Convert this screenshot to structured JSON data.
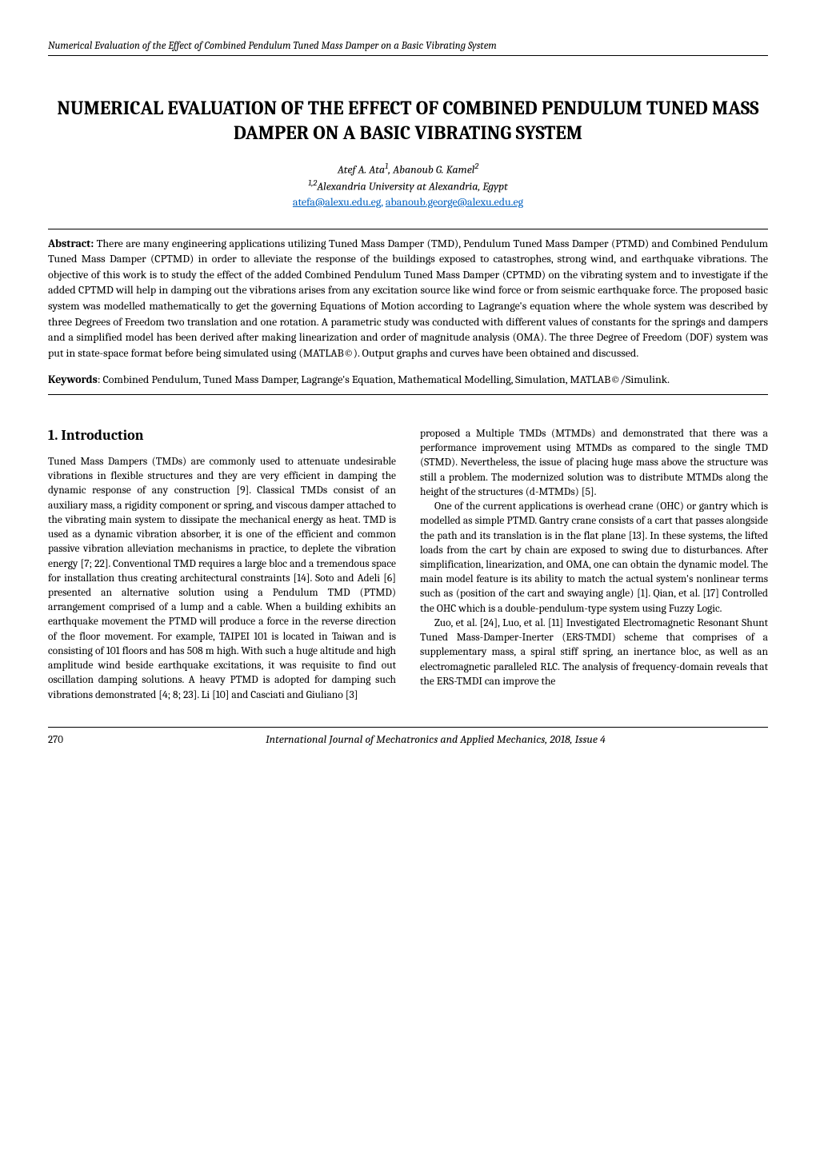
{
  "header": {
    "running_title": "Numerical Evaluation of the Effect of Combined Pendulum Tuned Mass Damper on a Basic Vibrating System"
  },
  "title": "NUMERICAL EVALUATION OF THE EFFECT OF COMBINED PENDULUM TUNED MASS DAMPER ON A BASIC VIBRATING SYSTEM",
  "authors": {
    "line": "Atef A. Ata",
    "sup1": "1",
    "name2": ", Abanoub G. Kamel",
    "sup2": "2"
  },
  "affiliation": {
    "sup": "1,2",
    "text": "Alexandria University at  Alexandria, Egypt"
  },
  "emails": {
    "email1": "atefa@alexu.edu.eg,",
    "email2": "abanoub.george@alexu.edu.eg"
  },
  "abstract": {
    "label": "Abstract:",
    "text": " There are many engineering applications utilizing Tuned Mass Damper (TMD), Pendulum Tuned Mass Damper (PTMD) and Combined Pendulum Tuned Mass Damper (CPTMD) in order to alleviate the response of the buildings exposed to catastrophes, strong wind, and earthquake vibrations. The objective of this work is to study the effect of the added Combined Pendulum Tuned Mass Damper (CPTMD) on the vibrating system and to investigate if the added CPTMD will help in damping out the vibrations arises from any excitation source like wind force or from seismic earthquake force. The proposed basic system was modelled mathematically to get the governing Equations of Motion according to Lagrange's equation where the whole system was described by three Degrees of Freedom two translation and one rotation. A parametric study was conducted with different values of constants for the springs and dampers and a simplified model has been derived after making linearization and order of magnitude analysis (OMA). The three Degree of Freedom (DOF) system was put in state-space format before being simulated using (MATLAB©). Output graphs and curves have been obtained and discussed."
  },
  "keywords": {
    "label": "Keywords",
    "colon": ":",
    "text": "  Combined Pendulum, Tuned Mass Damper, Lagrange's Equation, Mathematical Modelling, Simulation, MATLAB©/Simulink."
  },
  "section1": {
    "heading": "1. Introduction",
    "col1_para1": "Tuned Mass Dampers (TMDs) are commonly used to attenuate undesirable vibrations in flexible structures and they are very efficient in damping the dynamic response of any construction [9]. Classical TMDs consist of an auxiliary mass, a rigidity component or spring, and viscous damper attached to the vibrating main system to dissipate the mechanical energy as heat. TMD is used as a dynamic vibration absorber, it is one of the efficient and common passive vibration alleviation mechanisms in practice, to deplete the vibration energy [7; 22]. Conventional TMD requires a large bloc and a tremendous space for installation thus creating architectural constraints [14]. Soto and Adeli [6] presented an alternative solution using a Pendulum TMD (PTMD) arrangement comprised of a lump and a cable. When a building exhibits an earthquake movement the PTMD will produce a force in the reverse direction of the floor movement. For example, TAIPEI 101 is located in Taiwan and is consisting of 101 floors and has 508 m high. With such a huge altitude and high amplitude wind beside earthquake excitations, it was requisite to find out oscillation damping solutions. A heavy PTMD is adopted for damping such vibrations demonstrated [4; 8; 23]. Li [10] and Casciati and Giuliano [3]",
    "col2_para1": "proposed a Multiple TMDs (MTMDs) and demonstrated that there was a performance improvement using MTMDs as compared to the single TMD (STMD). Nevertheless, the issue of placing huge mass above the structure was still a problem. The modernized solution was to distribute MTMDs along the height of the structures (d-MTMDs) [5].",
    "col2_para2": "One of the current applications is overhead crane (OHC) or gantry which is modelled as simple PTMD. Gantry crane consists of a cart that passes alongside the path and its translation is in the flat plane [13]. In these systems, the lifted loads from the cart by chain are exposed to swing due to disturbances. After simplification, linearization, and OMA, one can obtain the dynamic model. The main model feature is its ability to match the actual system's nonlinear terms such as (position of the cart and swaying angle) [1]. Qian, et al. [17] Controlled the OHC which is a double-pendulum-type system using Fuzzy Logic.",
    "col2_para3": "Zuo, et al. [24], Luo, et al. [11] Investigated Electromagnetic Resonant Shunt Tuned Mass-Damper-Inerter (ERS-TMDI) scheme that comprises of a supplementary mass, a spiral stiff spring, an inertance bloc, as well as an electromagnetic paralleled RLC. The analysis of frequency-domain reveals that the ERS-TMDI can improve the"
  },
  "footer": {
    "page_number": "270",
    "journal": "International Journal of Mechatronics and Applied Mechanics, 2018, Issue 4"
  }
}
